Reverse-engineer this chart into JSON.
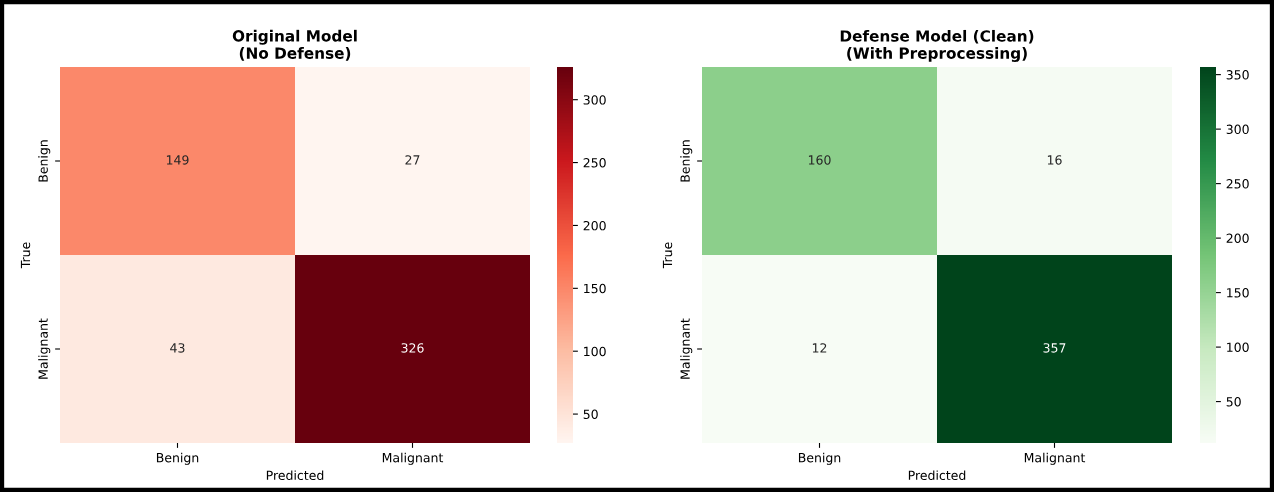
{
  "chart_data": [
    {
      "type": "heatmap",
      "title": "Original Model\n(No Defense)",
      "xlabel": "Predicted",
      "ylabel": "True",
      "categories": [
        "Benign",
        "Malignant"
      ],
      "y_categories": [
        "Benign",
        "Malignant"
      ],
      "cells": [
        [
          149,
          27
        ],
        [
          43,
          326
        ]
      ],
      "data_labels": true,
      "clim": [
        27,
        326
      ],
      "cticks": [
        50,
        100,
        150,
        200,
        250,
        300
      ],
      "colors": [
        "#fff5f0",
        "#fcbba1",
        "#fb6a4a",
        "#cb181d",
        "#67000d"
      ]
    },
    {
      "type": "heatmap",
      "title": "Defense Model (Clean)\n(With Preprocessing)",
      "xlabel": "Predicted",
      "ylabel": "True",
      "categories": [
        "Benign",
        "Malignant"
      ],
      "y_categories": [
        "Benign",
        "Malignant"
      ],
      "cells": [
        [
          160,
          16
        ],
        [
          12,
          357
        ]
      ],
      "data_labels": true,
      "clim": [
        12,
        357
      ],
      "cticks": [
        50,
        100,
        150,
        200,
        250,
        300,
        350
      ],
      "colors": [
        "#f7fcf5",
        "#c7e9c0",
        "#74c476",
        "#238b45",
        "#00441b"
      ]
    }
  ]
}
